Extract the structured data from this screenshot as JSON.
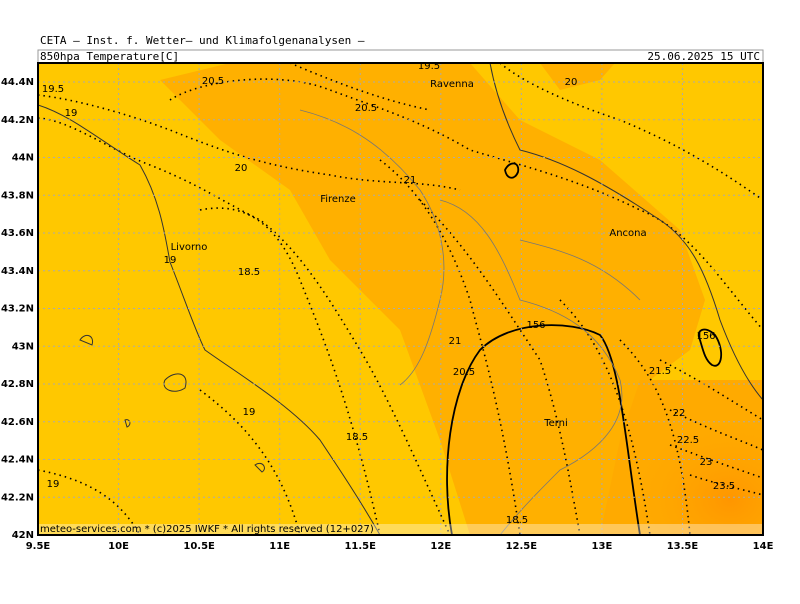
{
  "header": {
    "source": "CETA — Inst. f. Wetter— und Klimafolgenanalysen —",
    "title": "850hpa_Temperature[C]",
    "date": "25.06.2025 15 UTC"
  },
  "axes": {
    "x_labels": [
      "9.5E",
      "10E",
      "10.5E",
      "11E",
      "11.5E",
      "12E",
      "12.5E",
      "13E",
      "13.5E",
      "14E"
    ],
    "y_labels": [
      "44.4N",
      "44.2N",
      "44N",
      "43.8N",
      "43.6N",
      "43.4N",
      "43.2N",
      "43N",
      "42.8N",
      "42.6N",
      "42.4N",
      "42.2N",
      "42N"
    ]
  },
  "cities": [
    "Ravenna",
    "Firenze",
    "Ancona",
    "Livorno",
    "Terni"
  ],
  "contour_labels": [
    "19.5",
    "19",
    "20.5",
    "19.5",
    "20",
    "20.5",
    "20",
    "21",
    "19",
    "18.5",
    "156",
    "156",
    "21",
    "20.5",
    "21.5",
    "22",
    "22.5",
    "23",
    "23.5",
    "19",
    "18.5",
    "19",
    "18.5"
  ],
  "footer": "meteo-services.com * (c)2025 IWKF * All rights reserved (12+027)"
}
